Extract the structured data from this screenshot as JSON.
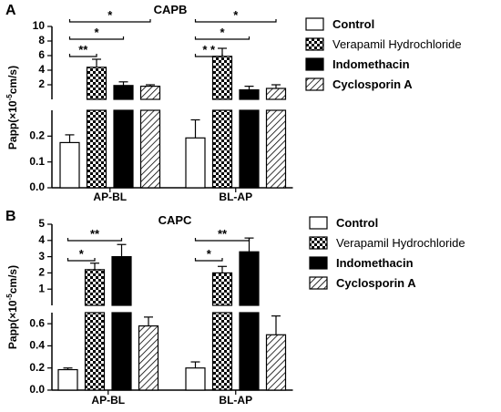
{
  "chart_data": [
    {
      "type": "bar",
      "panel_letter": "A",
      "title": "CAPB",
      "ylabel_main": "Papp(×10",
      "ylabel_sup": "-5",
      "ylabel_tail": "cm/s)",
      "categories": [
        "AP-BL",
        "BL-AP"
      ],
      "y_upper": {
        "ylim": [
          0,
          10
        ],
        "ticks": [
          "0",
          "2",
          "4",
          "6",
          "8",
          "10"
        ]
      },
      "y_lower": {
        "ylim": [
          0,
          0.3
        ],
        "ticks": [
          "0.0",
          "0.1",
          "0.2"
        ]
      },
      "series": [
        {
          "name": "Control",
          "pattern": "white",
          "values": [
            0.175,
            0.193
          ],
          "errors": [
            0.03,
            0.07
          ]
        },
        {
          "name": "Verapamil Hydrochloride",
          "pattern": "checker",
          "values": [
            4.4,
            5.9
          ],
          "errors": [
            1.1,
            1.1
          ]
        },
        {
          "name": "Indomethacin",
          "pattern": "black",
          "values": [
            1.9,
            1.3
          ],
          "errors": [
            0.5,
            0.5
          ]
        },
        {
          "name": "Cyclosporin A",
          "pattern": "hatch",
          "values": [
            1.8,
            1.5
          ],
          "errors": [
            0.2,
            0.5
          ]
        }
      ],
      "significance": [
        {
          "group": 0,
          "from": 0,
          "to": 1,
          "label": "**"
        },
        {
          "group": 0,
          "from": 0,
          "to": 2,
          "label": "*"
        },
        {
          "group": 0,
          "from": 0,
          "to": 3,
          "label": "*"
        },
        {
          "group": 1,
          "from": 0,
          "to": 1,
          "label": "* *"
        },
        {
          "group": 1,
          "from": 0,
          "to": 2,
          "label": "*"
        },
        {
          "group": 1,
          "from": 0,
          "to": 3,
          "label": "*"
        }
      ],
      "legend": {
        "items": [
          "Control",
          "Verapamil Hydrochloride",
          "Indomethacin",
          "Cyclosporin A"
        ],
        "placement": "right"
      }
    },
    {
      "type": "bar",
      "panel_letter": "B",
      "title": "CAPC",
      "ylabel_main": "Papp(×10",
      "ylabel_sup": "-5",
      "ylabel_tail": "cm/s)",
      "categories": [
        "AP-BL",
        "BL-AP"
      ],
      "y_upper": {
        "ylim": [
          0,
          5
        ],
        "ticks": [
          "0",
          "1",
          "2",
          "3",
          "4",
          "5"
        ]
      },
      "y_lower": {
        "ylim": [
          0,
          0.7
        ],
        "ticks": [
          "0.0",
          "0.2",
          "0.4",
          "0.6"
        ]
      },
      "series": [
        {
          "name": "Control",
          "pattern": "white",
          "values": [
            0.185,
            0.2
          ],
          "errors": [
            0.015,
            0.055
          ]
        },
        {
          "name": "Verapamil Hydrochloride",
          "pattern": "checker",
          "values": [
            2.2,
            2.0
          ],
          "errors": [
            0.4,
            0.4
          ]
        },
        {
          "name": "Indomethacin",
          "pattern": "black",
          "values": [
            3.0,
            3.3
          ],
          "errors": [
            0.75,
            0.85
          ]
        },
        {
          "name": "Cyclosporin A",
          "pattern": "hatch",
          "values": [
            0.58,
            0.5
          ],
          "errors": [
            0.08,
            0.17
          ]
        }
      ],
      "significance": [
        {
          "group": 0,
          "from": 0,
          "to": 1,
          "label": "*"
        },
        {
          "group": 0,
          "from": 0,
          "to": 2,
          "label": "**"
        },
        {
          "group": 1,
          "from": 0,
          "to": 1,
          "label": "*"
        },
        {
          "group": 1,
          "from": 0,
          "to": 2,
          "label": "**"
        }
      ],
      "legend": {
        "items": [
          "Control",
          "Verapamil Hydrochloride",
          "Indomethacin",
          "Cyclosporin A"
        ],
        "placement": "right"
      }
    }
  ]
}
